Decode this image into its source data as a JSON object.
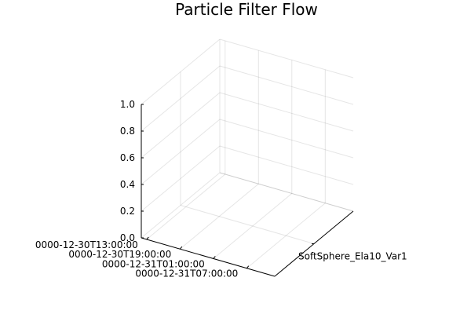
{
  "chart_data": {
    "type": "line",
    "projection": "3d",
    "title": "Particle Filter Flow",
    "xlabel": "",
    "ylabel": "",
    "zlabel": "",
    "x_ticks": [
      "0000-12-30T13:00:00",
      "0000-12-30T19:00:00",
      "0000-12-31T01:00:00",
      "0000-12-31T07:00:00"
    ],
    "y_categories": [
      "SoftSphere_Ela10_Var1"
    ],
    "z_ticks": [
      "0.0",
      "0.2",
      "0.4",
      "0.6",
      "0.8",
      "1.0"
    ],
    "zlim": [
      0,
      1
    ],
    "grid": true,
    "legend": "none",
    "series": []
  }
}
